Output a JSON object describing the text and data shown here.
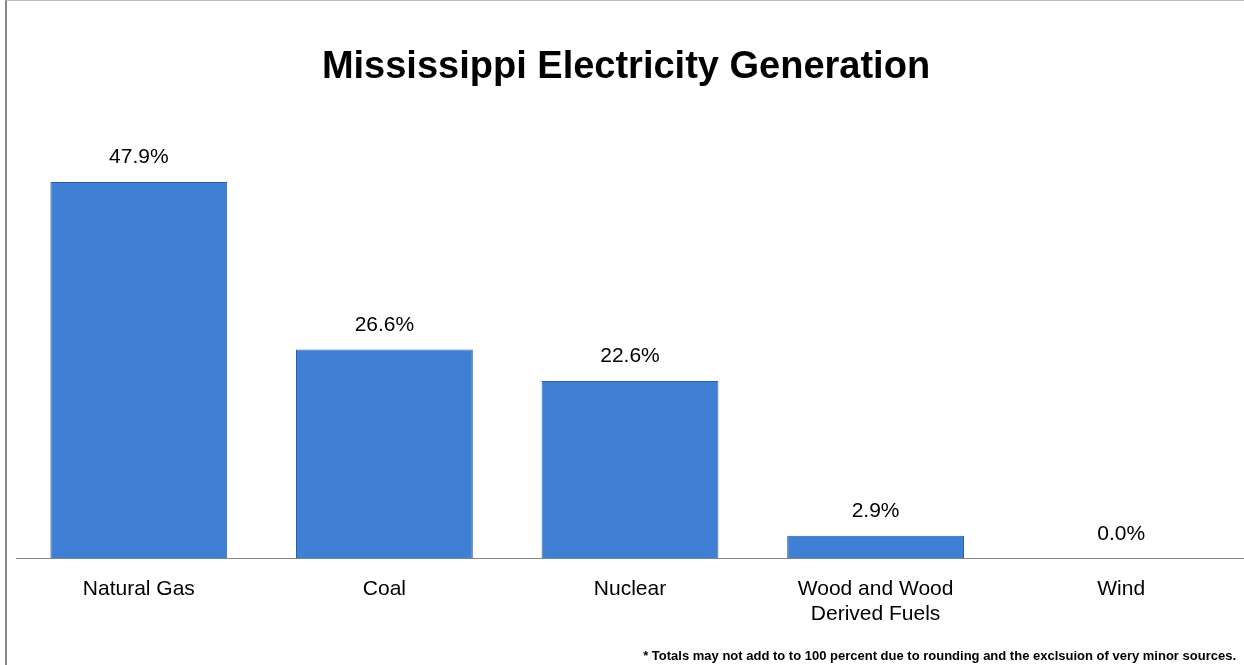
{
  "chart_data": {
    "type": "bar",
    "title": "Mississippi Electricity Generation",
    "categories": [
      "Natural Gas",
      "Coal",
      "Nuclear",
      "Wood and Wood Derived Fuels",
      "Wind"
    ],
    "values": [
      47.9,
      26.6,
      22.6,
      2.9,
      0.0
    ],
    "value_labels": [
      "47.9%",
      "26.6%",
      "22.6%",
      "2.9%",
      "0.0%"
    ],
    "color": "#3f7fd4",
    "grid": false,
    "legend": false,
    "annotations": [
      "* Totals may not add to to 100 percent due to rounding and the exclsuion of very minor sources."
    ]
  }
}
